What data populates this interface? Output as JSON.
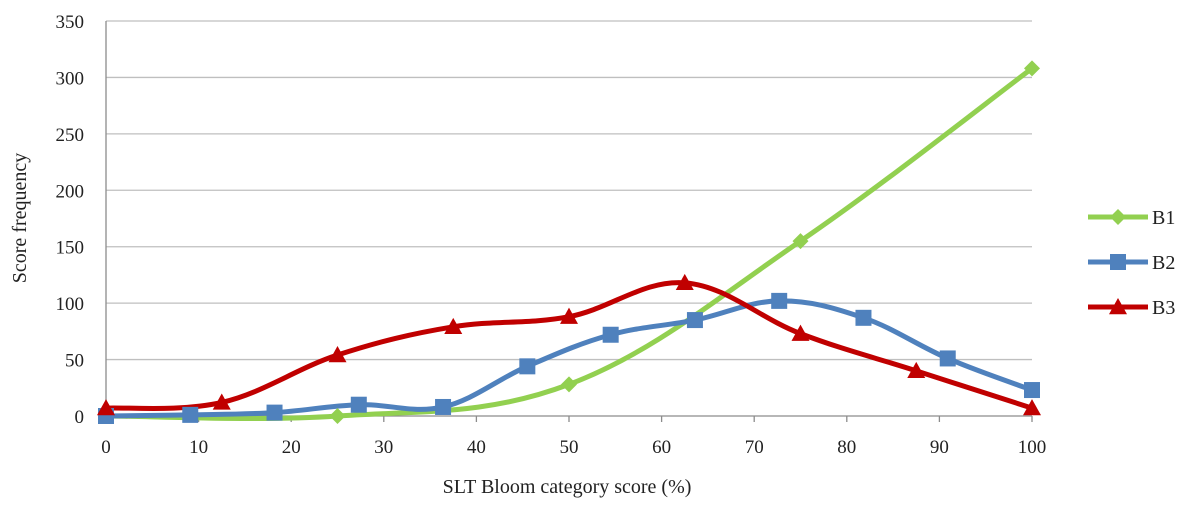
{
  "chart_data": {
    "type": "line",
    "xlabel": "SLT Bloom category score (%)",
    "ylabel": "Score frequency",
    "xlim": [
      0,
      100
    ],
    "ylim": [
      0,
      350
    ],
    "x_ticks": [
      0,
      10,
      20,
      30,
      40,
      50,
      60,
      70,
      80,
      90,
      100
    ],
    "y_ticks": [
      0,
      50,
      100,
      150,
      200,
      250,
      300,
      350
    ],
    "grid": "horizontal",
    "smooth": true,
    "legend_position": "right",
    "series": [
      {
        "name": "B1",
        "color": "#92d050",
        "marker": "diamond",
        "x": [
          0,
          25,
          50,
          75,
          100
        ],
        "y": [
          0,
          0,
          28,
          155,
          308
        ]
      },
      {
        "name": "B2",
        "color": "#4f81bd",
        "marker": "square",
        "x": [
          0,
          9.1,
          18.2,
          27.3,
          36.4,
          45.5,
          54.5,
          63.6,
          72.7,
          81.8,
          90.9,
          100
        ],
        "y": [
          0,
          1,
          3,
          10,
          8,
          44,
          72,
          85,
          102,
          87,
          51,
          23
        ]
      },
      {
        "name": "B3",
        "color": "#c00000",
        "marker": "triangle",
        "x": [
          0,
          12.5,
          25,
          37.5,
          50,
          62.5,
          75,
          87.5,
          100
        ],
        "y": [
          7,
          12,
          54,
          79,
          88,
          118,
          73,
          40,
          7
        ]
      }
    ]
  }
}
